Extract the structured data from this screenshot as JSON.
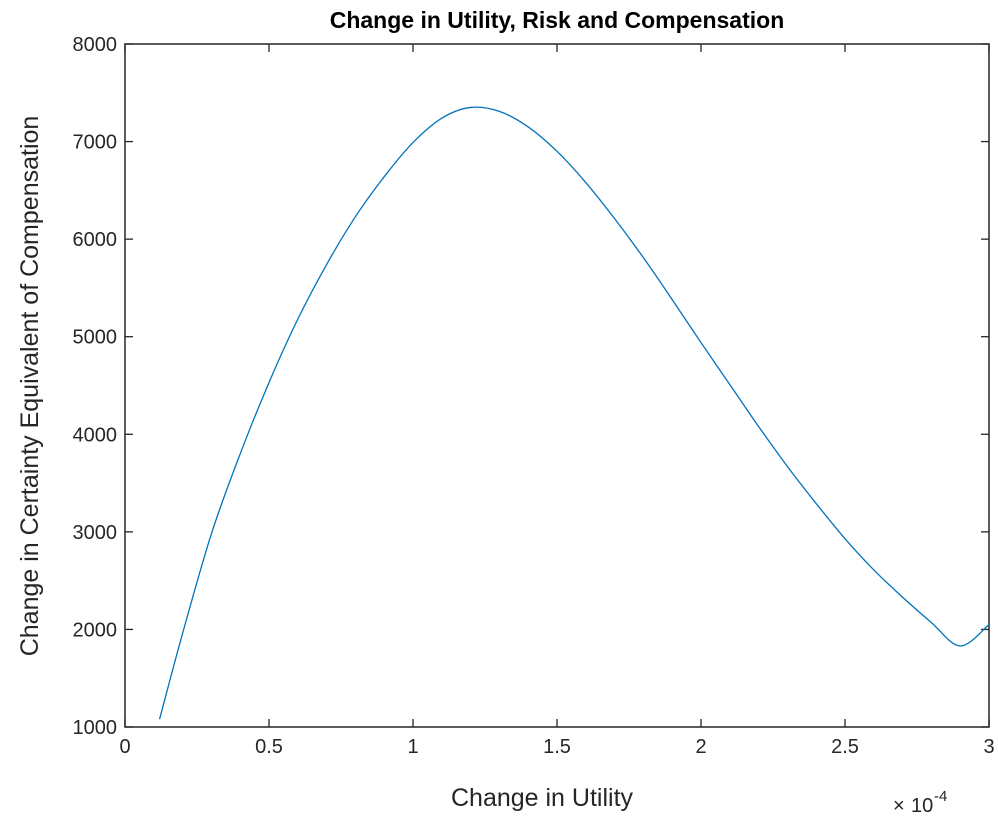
{
  "chart_data": {
    "type": "line",
    "title": "Change in Utility, Risk and Compensation",
    "xlabel": "Change in Utility",
    "ylabel": "Change in Certainty Equivalent of Compensation",
    "x_exponent_label": {
      "times": "×",
      "base": "10",
      "power": "-4"
    },
    "xlim": [
      0,
      3
    ],
    "ylim": [
      1000,
      8000
    ],
    "x_ticks": [
      "0",
      "0.5",
      "1",
      "1.5",
      "2",
      "2.5",
      "3"
    ],
    "y_ticks": [
      "1000",
      "2000",
      "3000",
      "4000",
      "5000",
      "6000",
      "7000",
      "8000"
    ],
    "grid": false,
    "legend": "none",
    "line_color": "#0072BD",
    "series": [
      {
        "x": [
          0.12,
          0.2,
          0.3,
          0.4,
          0.5,
          0.6,
          0.7,
          0.8,
          0.9,
          1.0,
          1.1,
          1.2,
          1.3,
          1.4,
          1.5,
          1.6,
          1.7,
          1.8,
          1.9,
          2.0,
          2.1,
          2.2,
          2.3,
          2.4,
          2.5,
          2.6,
          2.7,
          2.8,
          2.9,
          3.0
        ],
        "y": [
          1080,
          1960,
          2980,
          3800,
          4530,
          5180,
          5740,
          6230,
          6640,
          6990,
          7240,
          7350,
          7310,
          7150,
          6900,
          6580,
          6210,
          5810,
          5380,
          4940,
          4510,
          4080,
          3670,
          3290,
          2930,
          2610,
          2330,
          2070,
          1830,
          2050
        ]
      }
    ]
  }
}
